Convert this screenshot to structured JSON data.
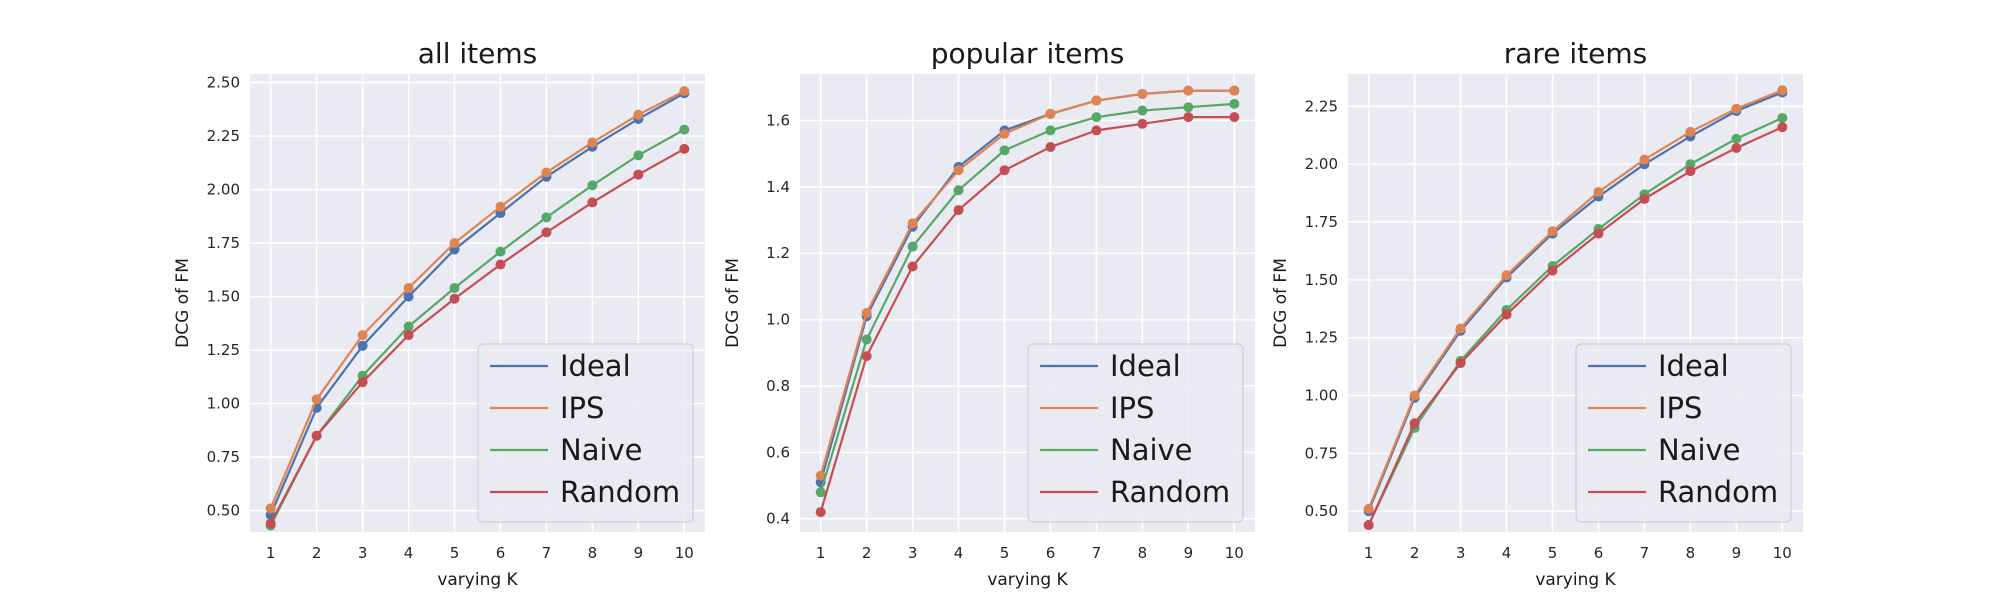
{
  "series_colors": {
    "Ideal": "#4c72b0",
    "IPS": "#dd8452",
    "Naive": "#55a868",
    "Random": "#c44e52"
  },
  "chart_data": [
    {
      "type": "line",
      "title": "all items",
      "xlabel": "varying K",
      "ylabel": "DCG of FM",
      "x": [
        1,
        2,
        3,
        4,
        5,
        6,
        7,
        8,
        9,
        10
      ],
      "ylim": [
        0.4,
        2.54
      ],
      "yticks": [
        0.5,
        0.75,
        1.0,
        1.25,
        1.5,
        1.75,
        2.0,
        2.25,
        2.5
      ],
      "ytick_labels": [
        "0.50",
        "0.75",
        "1.00",
        "1.25",
        "1.50",
        "1.75",
        "2.00",
        "2.25",
        "2.50"
      ],
      "grid": true,
      "legend_position": "lower-right",
      "series": [
        {
          "name": "Ideal",
          "values": [
            0.48,
            0.98,
            1.27,
            1.5,
            1.72,
            1.89,
            2.06,
            2.2,
            2.33,
            2.45
          ]
        },
        {
          "name": "IPS",
          "values": [
            0.51,
            1.02,
            1.32,
            1.54,
            1.75,
            1.92,
            2.08,
            2.22,
            2.35,
            2.46
          ]
        },
        {
          "name": "Naive",
          "values": [
            0.43,
            0.85,
            1.13,
            1.36,
            1.54,
            1.71,
            1.87,
            2.02,
            2.16,
            2.28
          ]
        },
        {
          "name": "Random",
          "values": [
            0.44,
            0.85,
            1.1,
            1.32,
            1.49,
            1.65,
            1.8,
            1.94,
            2.07,
            2.19
          ]
        }
      ]
    },
    {
      "type": "line",
      "title": "popular items",
      "xlabel": "varying K",
      "ylabel": "DCG of FM",
      "x": [
        1,
        2,
        3,
        4,
        5,
        6,
        7,
        8,
        9,
        10
      ],
      "ylim": [
        0.36,
        1.74
      ],
      "yticks": [
        0.4,
        0.6,
        0.8,
        1.0,
        1.2,
        1.4,
        1.6
      ],
      "ytick_labels": [
        "0.4",
        "0.6",
        "0.8",
        "1.0",
        "1.2",
        "1.4",
        "1.6"
      ],
      "grid": true,
      "legend_position": "lower-right",
      "series": [
        {
          "name": "Ideal",
          "values": [
            0.51,
            1.01,
            1.28,
            1.46,
            1.57,
            1.62,
            1.66,
            1.68,
            1.69,
            1.69
          ]
        },
        {
          "name": "IPS",
          "values": [
            0.53,
            1.02,
            1.29,
            1.45,
            1.56,
            1.62,
            1.66,
            1.68,
            1.69,
            1.69
          ]
        },
        {
          "name": "Naive",
          "values": [
            0.48,
            0.94,
            1.22,
            1.39,
            1.51,
            1.57,
            1.61,
            1.63,
            1.64,
            1.65
          ]
        },
        {
          "name": "Random",
          "values": [
            0.42,
            0.89,
            1.16,
            1.33,
            1.45,
            1.52,
            1.57,
            1.59,
            1.61,
            1.61
          ]
        }
      ]
    },
    {
      "type": "line",
      "title": "rare items",
      "xlabel": "varying K",
      "ylabel": "DCG of FM",
      "x": [
        1,
        2,
        3,
        4,
        5,
        6,
        7,
        8,
        9,
        10
      ],
      "ylim": [
        0.41,
        2.39
      ],
      "yticks": [
        0.5,
        0.75,
        1.0,
        1.25,
        1.5,
        1.75,
        2.0,
        2.25
      ],
      "ytick_labels": [
        "0.50",
        "0.75",
        "1.00",
        "1.25",
        "1.50",
        "1.75",
        "2.00",
        "2.25"
      ],
      "grid": true,
      "legend_position": "lower-right",
      "series": [
        {
          "name": "Ideal",
          "values": [
            0.5,
            0.99,
            1.28,
            1.51,
            1.7,
            1.86,
            2.0,
            2.12,
            2.23,
            2.31
          ]
        },
        {
          "name": "IPS",
          "values": [
            0.51,
            1.0,
            1.29,
            1.52,
            1.71,
            1.88,
            2.02,
            2.14,
            2.24,
            2.32
          ]
        },
        {
          "name": "Naive",
          "values": [
            0.44,
            0.86,
            1.15,
            1.37,
            1.56,
            1.72,
            1.87,
            2.0,
            2.11,
            2.2
          ]
        },
        {
          "name": "Random",
          "values": [
            0.44,
            0.88,
            1.14,
            1.35,
            1.54,
            1.7,
            1.85,
            1.97,
            2.07,
            2.16
          ]
        }
      ]
    }
  ]
}
